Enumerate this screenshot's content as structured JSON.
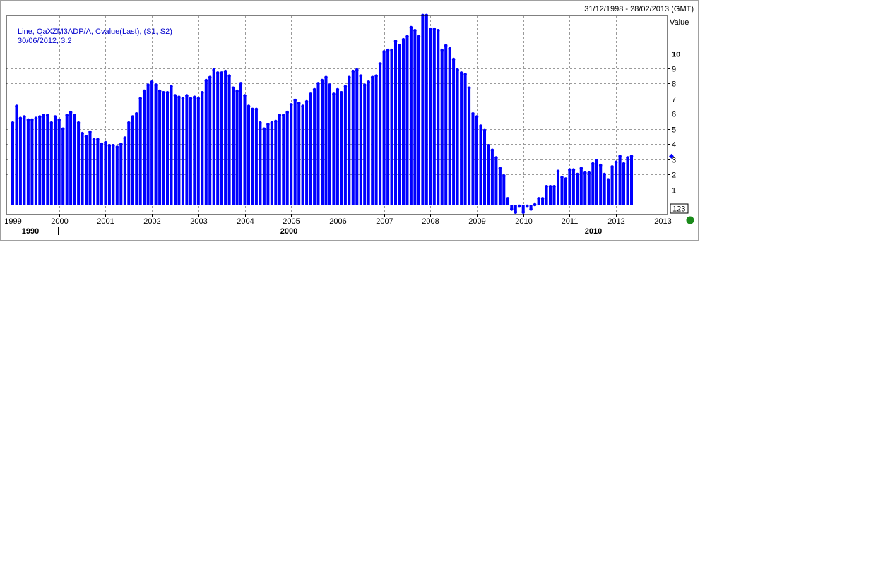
{
  "header": {
    "date_range": "31/12/1998 - 28/02/2013 (GMT)"
  },
  "legend": {
    "line1": "Line, QaXZM3ADP/A, Cvalue(Last), (S1, S2)",
    "line2": "30/06/2012, 3.2"
  },
  "last_value_box": "123",
  "status_color": "#1a8a1a",
  "chart_data": {
    "type": "bar",
    "ylabel": "Value",
    "ylim": [
      0,
      12.5
    ],
    "y_ticks": [
      "1",
      "2",
      "3",
      "4",
      "5",
      "6",
      "7",
      "8",
      "9",
      "10"
    ],
    "x_ticks": [
      "1999",
      "2000",
      "2001",
      "2002",
      "2003",
      "2004",
      "2005",
      "2006",
      "2007",
      "2008",
      "2009",
      "2010",
      "2011",
      "2012",
      "2013"
    ],
    "decade_labels": [
      "1990",
      "2000",
      "2010"
    ],
    "grid": true,
    "bar_color": "#0000ff",
    "x_start": "1999-01",
    "values": [
      5.4,
      6.5,
      5.7,
      5.8,
      5.6,
      5.6,
      5.7,
      5.8,
      5.9,
      5.9,
      5.4,
      5.8,
      5.6,
      5.0,
      5.9,
      6.1,
      5.9,
      5.4,
      4.7,
      4.5,
      4.8,
      4.3,
      4.3,
      4.0,
      4.1,
      3.9,
      3.9,
      3.8,
      4.0,
      4.4,
      5.4,
      5.8,
      6.0,
      7.0,
      7.5,
      7.9,
      8.1,
      7.9,
      7.5,
      7.4,
      7.4,
      7.8,
      7.2,
      7.1,
      7.0,
      7.2,
      7.0,
      7.1,
      7.0,
      7.4,
      8.2,
      8.4,
      8.9,
      8.7,
      8.7,
      8.8,
      8.5,
      7.7,
      7.5,
      8.0,
      7.2,
      6.5,
      6.3,
      6.3,
      5.4,
      5.0,
      5.3,
      5.4,
      5.5,
      5.9,
      5.9,
      6.1,
      6.6,
      6.9,
      6.7,
      6.5,
      6.8,
      7.3,
      7.6,
      8.0,
      8.2,
      8.4,
      7.9,
      7.3,
      7.6,
      7.4,
      7.8,
      8.4,
      8.8,
      8.9,
      8.5,
      7.9,
      8.1,
      8.4,
      8.5,
      9.3,
      10.1,
      10.2,
      10.2,
      10.8,
      10.5,
      10.9,
      11.1,
      11.7,
      11.5,
      11.1,
      12.5,
      12.5,
      11.6,
      11.6,
      11.5,
      10.2,
      10.5,
      10.3,
      9.6,
      8.9,
      8.7,
      8.6,
      7.7,
      6.0,
      5.8,
      5.2,
      4.9,
      3.9,
      3.6,
      3.1,
      2.4,
      1.9,
      0.4,
      -0.3,
      -0.5,
      -0.1,
      -0.5,
      -0.1,
      -0.3,
      0.0,
      0.4,
      0.4,
      1.2,
      1.2,
      1.2,
      2.2,
      1.8,
      1.7,
      2.3,
      2.3,
      2.0,
      2.4,
      2.1,
      2.1,
      2.7,
      2.9,
      2.6,
      2.0,
      1.6,
      2.5,
      2.8,
      3.2,
      2.7,
      3.1,
      3.2
    ]
  }
}
